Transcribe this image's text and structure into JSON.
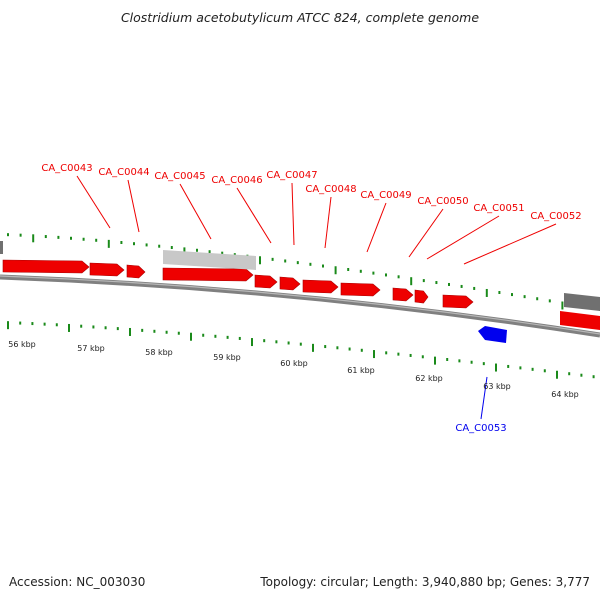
{
  "header": {
    "title": "Clostridium acetobutylicum ATCC 824, complete genome"
  },
  "footer": {
    "accession": "Accession: NC_003030",
    "summary": "Topology: circular; Length: 3,940,880 bp; Genes: 3,777"
  },
  "colors": {
    "forward_gene": "#ee0000",
    "reverse_gene": "#0000ee",
    "other_feature_light": "#c8c8c8",
    "other_feature_dark": "#707070",
    "backbone": "#808080",
    "tick": "#1a8a1a"
  },
  "scale_labels": [
    "56 kbp",
    "57 kbp",
    "58 kbp",
    "59 kbp",
    "60 kbp",
    "61 kbp",
    "62 kbp",
    "63 kbp",
    "64 kbp"
  ],
  "genes_forward": [
    "CA_C0043",
    "CA_C0044",
    "CA_C0045",
    "CA_C0046",
    "CA_C0047",
    "CA_C0048",
    "CA_C0049",
    "CA_C0050",
    "CA_C0051",
    "CA_C0052"
  ],
  "genes_reverse": [
    "CA_C0053"
  ]
}
